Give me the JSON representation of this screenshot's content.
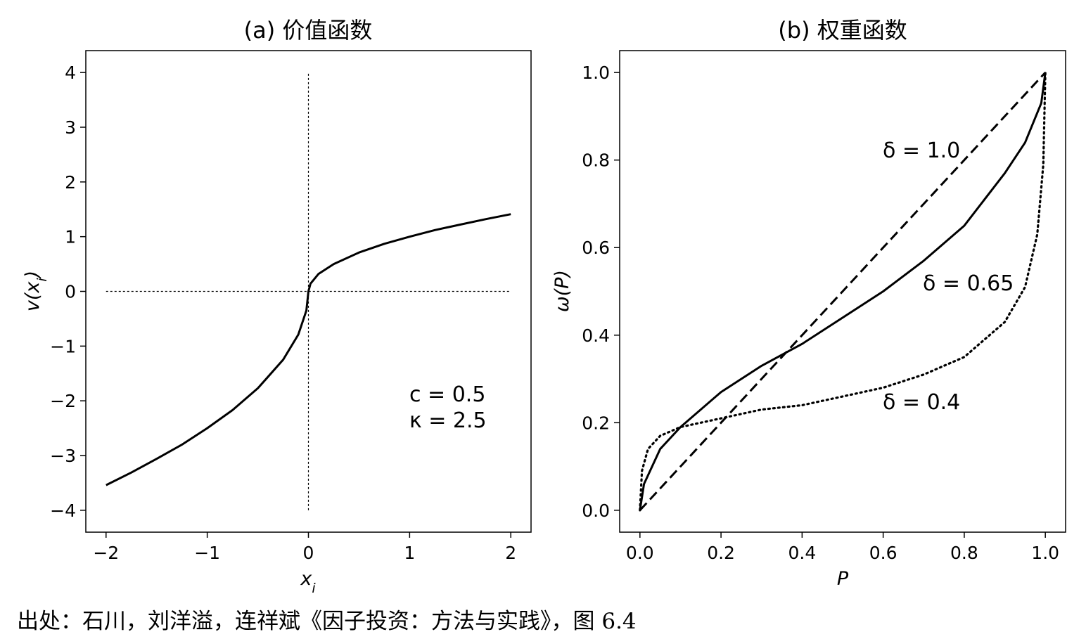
{
  "caption": "出处：石川，刘洋溢，连祥斌《因子投资：方法与实践》，图 6.4",
  "chart_data": [
    {
      "type": "line",
      "title": "(a) 价值函数",
      "xlabel": "x_i",
      "ylabel": "v(x_i)",
      "xlim": [
        -2.2,
        2.2
      ],
      "ylim": [
        -4.4,
        4.4
      ],
      "x_ticks": [
        -2,
        -1,
        0,
        1,
        2
      ],
      "x_tick_labels": [
        "−2",
        "−1",
        "0",
        "1",
        "2"
      ],
      "y_ticks": [
        -4,
        -3,
        -2,
        -1,
        0,
        1,
        2,
        3,
        4
      ],
      "y_tick_labels": [
        "−4",
        "−3",
        "−2",
        "−1",
        "0",
        "1",
        "2",
        "3",
        "4"
      ],
      "grid": false,
      "params": {
        "c": 0.5,
        "kappa": 2.5
      },
      "annotation_lines": [
        "c = 0.5",
        "κ = 2.5"
      ],
      "series": [
        {
          "style": "solid",
          "x": [
            -2,
            -1.75,
            -1.5,
            -1.25,
            -1,
            -0.75,
            -0.5,
            -0.25,
            -0.1,
            -0.02,
            0,
            0.02,
            0.1,
            0.25,
            0.5,
            0.75,
            1,
            1.25,
            1.5,
            1.75,
            2
          ],
          "y": [
            -3.54,
            -3.31,
            -3.06,
            -2.8,
            -2.5,
            -2.17,
            -1.77,
            -1.25,
            -0.79,
            -0.35,
            0,
            0.14,
            0.32,
            0.5,
            0.71,
            0.87,
            1.0,
            1.12,
            1.22,
            1.32,
            1.41
          ]
        }
      ],
      "reference_lines": [
        {
          "orientation": "horizontal",
          "y": 0,
          "x_range": [
            -2,
            2
          ],
          "style": "dotted"
        },
        {
          "orientation": "vertical",
          "x": 0,
          "y_range": [
            -4,
            4
          ],
          "style": "dotted"
        }
      ]
    },
    {
      "type": "line",
      "title": "(b) 权重函数",
      "xlabel": "P",
      "ylabel": "ω(P)",
      "xlim": [
        -0.05,
        1.05
      ],
      "ylim": [
        -0.05,
        1.05
      ],
      "x_ticks": [
        0,
        0.2,
        0.4,
        0.6,
        0.8,
        1.0
      ],
      "x_tick_labels": [
        "0.0",
        "0.2",
        "0.4",
        "0.6",
        "0.8",
        "1.0"
      ],
      "y_ticks": [
        0,
        0.2,
        0.4,
        0.6,
        0.8,
        1.0
      ],
      "y_tick_labels": [
        "0.0",
        "0.2",
        "0.4",
        "0.6",
        "0.8",
        "1.0"
      ],
      "grid": false,
      "series": [
        {
          "name": "δ = 1.0",
          "delta": 1.0,
          "style": "dashed",
          "x": [
            0,
            0.1,
            0.2,
            0.3,
            0.4,
            0.5,
            0.6,
            0.7,
            0.8,
            0.9,
            1.0
          ],
          "y": [
            0,
            0.1,
            0.2,
            0.3,
            0.4,
            0.5,
            0.6,
            0.7,
            0.8,
            0.9,
            1.0
          ]
        },
        {
          "name": "δ = 0.65",
          "delta": 0.65,
          "style": "solid",
          "x": [
            0,
            0.01,
            0.05,
            0.1,
            0.2,
            0.3,
            0.4,
            0.5,
            0.6,
            0.7,
            0.8,
            0.9,
            0.95,
            0.99,
            1.0
          ],
          "y": [
            0,
            0.06,
            0.14,
            0.19,
            0.27,
            0.33,
            0.38,
            0.44,
            0.5,
            0.57,
            0.65,
            0.77,
            0.84,
            0.93,
            1.0
          ]
        },
        {
          "name": "δ = 0.4",
          "delta": 0.4,
          "style": "dotted",
          "x": [
            0,
            0.005,
            0.02,
            0.05,
            0.1,
            0.2,
            0.3,
            0.4,
            0.5,
            0.6,
            0.7,
            0.8,
            0.9,
            0.95,
            0.98,
            0.995,
            1.0
          ],
          "y": [
            0,
            0.09,
            0.14,
            0.17,
            0.19,
            0.21,
            0.23,
            0.24,
            0.26,
            0.28,
            0.31,
            0.35,
            0.43,
            0.51,
            0.63,
            0.79,
            1.0
          ]
        }
      ]
    }
  ]
}
